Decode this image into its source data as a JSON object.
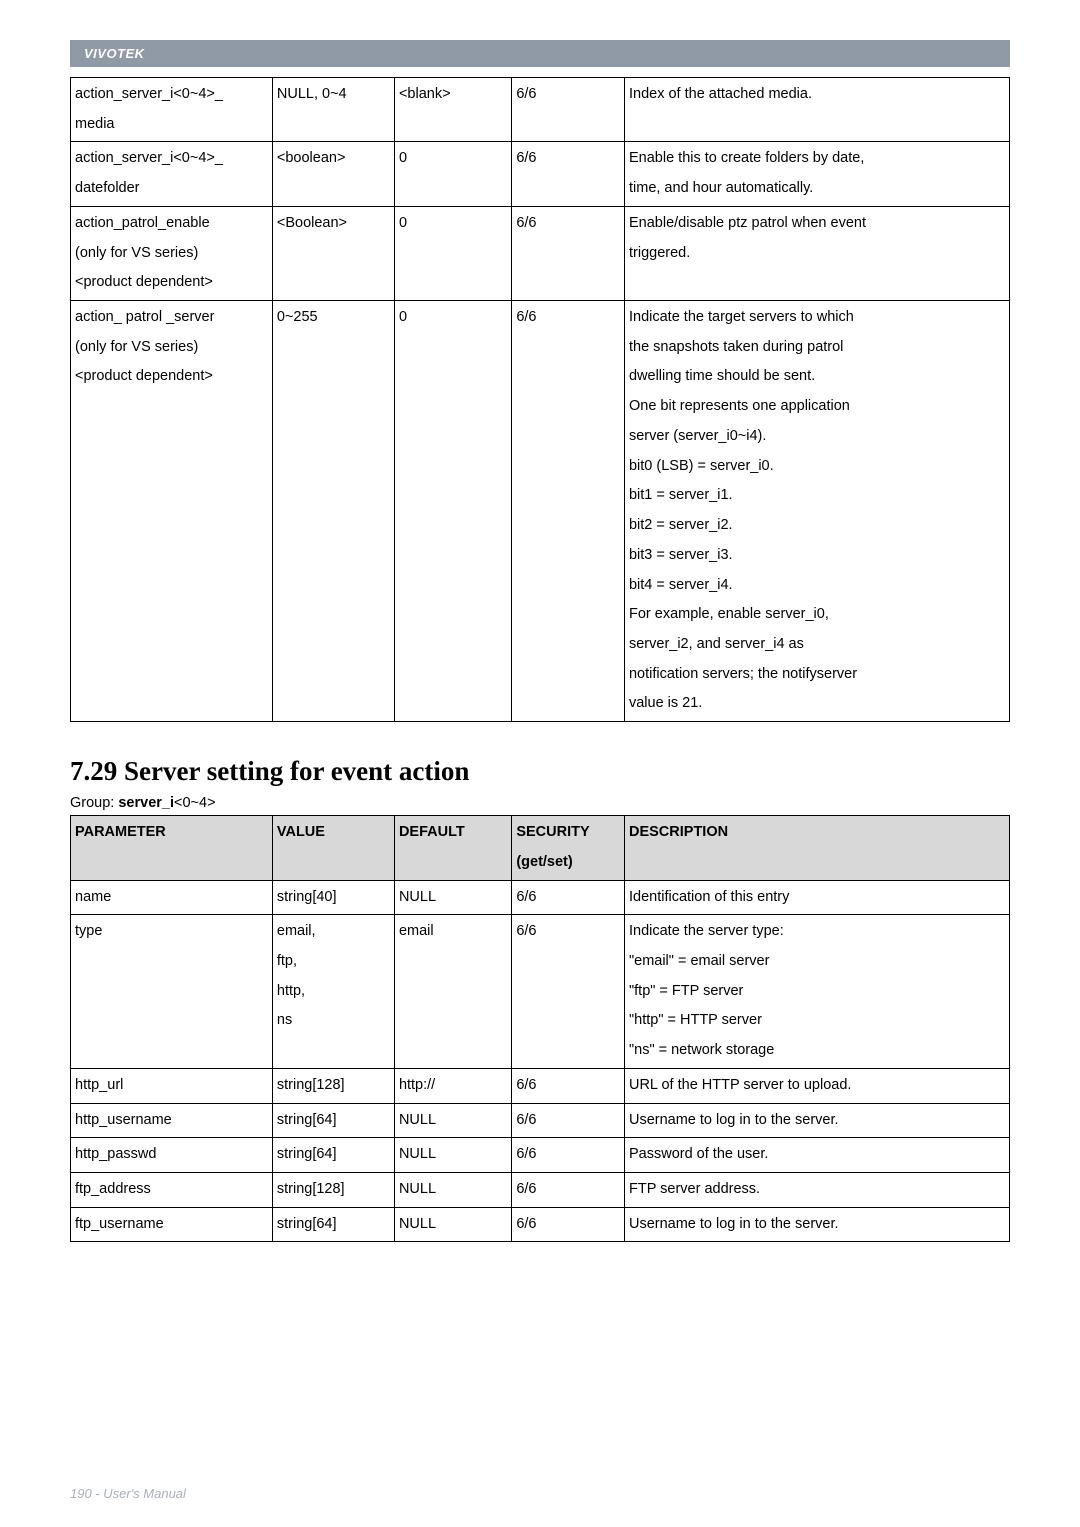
{
  "brand": "VIVOTEK",
  "table1": {
    "rows": [
      {
        "param": [
          "action_server_i<0~4>_",
          "media"
        ],
        "value": [
          "NULL, 0~4"
        ],
        "default": [
          "<blank>"
        ],
        "security": [
          "6/6"
        ],
        "desc": [
          "Index of the attached media."
        ]
      },
      {
        "param": [
          "action_server_i<0~4>_",
          "datefolder"
        ],
        "value": [
          "<boolean>"
        ],
        "default": [
          "0"
        ],
        "security": [
          "6/6"
        ],
        "desc": [
          "Enable this to create folders by date,",
          "time, and hour automatically."
        ]
      },
      {
        "param": [
          "action_patrol_enable",
          "(only for VS series)",
          "<product dependent>"
        ],
        "value": [
          "<Boolean>"
        ],
        "default": [
          "0"
        ],
        "security": [
          "6/6"
        ],
        "desc": [
          "Enable/disable ptz patrol when event",
          "triggered."
        ]
      },
      {
        "param": [
          "action_ patrol _server",
          "(only for VS series)",
          "<product dependent>"
        ],
        "value": [
          "0~255"
        ],
        "default": [
          "0"
        ],
        "security": [
          "6/6"
        ],
        "desc": [
          "Indicate the target servers to which",
          "the snapshots taken during patrol",
          "dwelling time should be sent.",
          "One bit represents one application",
          "server (server_i0~i4).",
          "bit0 (LSB) = server_i0.",
          "bit1 = server_i1.",
          "bit2 = server_i2.",
          "bit3 = server_i3.",
          "bit4 = server_i4.",
          "For example, enable server_i0,",
          "server_i2, and server_i4 as",
          "notification servers; the notifyserver",
          "value is 21."
        ]
      }
    ]
  },
  "heading": "7.29 Server setting for event action",
  "group_prefix": "Group: ",
  "group_name": "server_i",
  "group_suffix": "<0~4>",
  "table2": {
    "headers": {
      "param": "PARAMETER",
      "value": "VALUE",
      "default": "DEFAULT",
      "security_l1": "SECURITY",
      "security_l2": "(get/set)",
      "desc": "DESCRIPTION"
    },
    "rows": [
      {
        "param": [
          "name"
        ],
        "value": [
          "string[40]"
        ],
        "default": [
          "NULL"
        ],
        "security": [
          "6/6"
        ],
        "desc": [
          "Identification of this entry"
        ]
      },
      {
        "param": [
          "type"
        ],
        "value": [
          "email,",
          "ftp,",
          "http,",
          "ns"
        ],
        "default": [
          "email"
        ],
        "security": [
          "6/6"
        ],
        "desc": [
          "Indicate the server type:",
          "\"email\" = email server",
          "\"ftp\" = FTP server",
          "\"http\" = HTTP server",
          "\"ns\" = network storage"
        ]
      },
      {
        "param": [
          "http_url"
        ],
        "value": [
          "string[128]"
        ],
        "default": [
          "http://"
        ],
        "security": [
          "6/6"
        ],
        "desc": [
          "URL of the HTTP server to upload."
        ]
      },
      {
        "param": [
          "http_username"
        ],
        "value": [
          "string[64]"
        ],
        "default": [
          "NULL"
        ],
        "security": [
          "6/6"
        ],
        "desc": [
          "Username to log in to the server."
        ]
      },
      {
        "param": [
          "http_passwd"
        ],
        "value": [
          "string[64]"
        ],
        "default": [
          "NULL"
        ],
        "security": [
          "6/6"
        ],
        "desc": [
          "Password of the user."
        ]
      },
      {
        "param": [
          "ftp_address"
        ],
        "value": [
          "string[128]"
        ],
        "default": [
          "NULL"
        ],
        "security": [
          "6/6"
        ],
        "desc": [
          "FTP server address."
        ]
      },
      {
        "param": [
          "ftp_username"
        ],
        "value": [
          "string[64]"
        ],
        "default": [
          "NULL"
        ],
        "security": [
          "6/6"
        ],
        "desc": [
          "Username to log in to the server."
        ]
      }
    ]
  },
  "footer": "190 - User's Manual"
}
